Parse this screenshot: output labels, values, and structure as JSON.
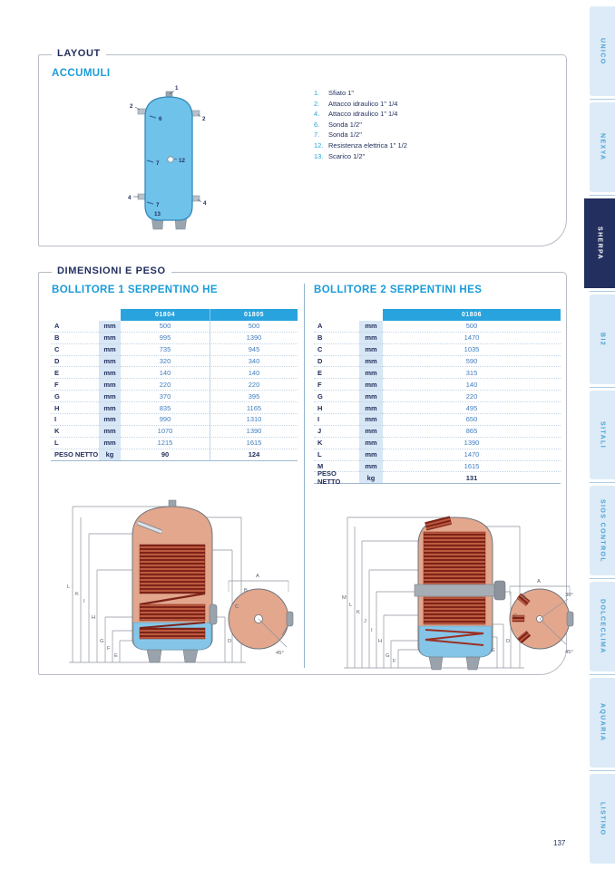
{
  "page": {
    "number": "137"
  },
  "sidebar": {
    "tabs": [
      {
        "label": "UNICO",
        "active": false
      },
      {
        "label": "NEXYA",
        "active": false
      },
      {
        "label": "SHERPA",
        "active": true
      },
      {
        "label": "BI2",
        "active": false
      },
      {
        "label": "SITALI",
        "active": false
      },
      {
        "label": "SIOS CONTROL",
        "active": false
      },
      {
        "label": "DOLCECLIMA",
        "active": false
      },
      {
        "label": "AQUARIA",
        "active": false
      },
      {
        "label": "LISTINO",
        "active": false
      }
    ]
  },
  "layout_section": {
    "title": "LAYOUT",
    "subtitle": "ACCUMULI",
    "legend": [
      {
        "num": "1.",
        "text": "Sfiato 1\""
      },
      {
        "num": "2.",
        "text": "Attacco idraulico 1\" 1/4"
      },
      {
        "num": "4.",
        "text": "Attacco idraulico 1\" 1/4"
      },
      {
        "num": "6.",
        "text": "Sonda 1/2\""
      },
      {
        "num": "7.",
        "text": "Sonda 1/2\""
      },
      {
        "num": "12.",
        "text": "Resistenza elettrica 1\" 1/2"
      },
      {
        "num": "13.",
        "text": "Scarico 1/2\""
      }
    ],
    "diagram_callouts": [
      "1",
      "2",
      "2",
      "6",
      "7",
      "12",
      "4",
      "4",
      "7",
      "13"
    ]
  },
  "dimensions_section": {
    "title": "DIMENSIONI E PESO",
    "tables": [
      {
        "title": "BOLLITORE 1 SERPENTINO HE",
        "models": [
          "01804",
          "01805"
        ],
        "rows": [
          {
            "label": "A",
            "unit": "mm",
            "values": [
              "500",
              "500"
            ]
          },
          {
            "label": "B",
            "unit": "mm",
            "values": [
              "995",
              "1390"
            ]
          },
          {
            "label": "C",
            "unit": "mm",
            "values": [
              "735",
              "945"
            ]
          },
          {
            "label": "D",
            "unit": "mm",
            "values": [
              "320",
              "340"
            ]
          },
          {
            "label": "E",
            "unit": "mm",
            "values": [
              "140",
              "140"
            ]
          },
          {
            "label": "F",
            "unit": "mm",
            "values": [
              "220",
              "220"
            ]
          },
          {
            "label": "G",
            "unit": "mm",
            "values": [
              "370",
              "395"
            ]
          },
          {
            "label": "H",
            "unit": "mm",
            "values": [
              "835",
              "1165"
            ]
          },
          {
            "label": "I",
            "unit": "mm",
            "values": [
              "990",
              "1310"
            ]
          },
          {
            "label": "K",
            "unit": "mm",
            "values": [
              "1070",
              "1390"
            ]
          },
          {
            "label": "L",
            "unit": "mm",
            "values": [
              "1215",
              "1615"
            ]
          }
        ],
        "footer": {
          "label": "PESO NETTO",
          "unit": "kg",
          "values": [
            "90",
            "124"
          ]
        },
        "drawing_labels": [
          "L",
          "K",
          "I",
          "H",
          "G",
          "F",
          "E",
          "B",
          "C",
          "D",
          "A",
          "45°"
        ]
      },
      {
        "title": "BOLLITORE 2 SERPENTINI HES",
        "models": [
          "01806"
        ],
        "rows": [
          {
            "label": "A",
            "unit": "mm",
            "values": [
              "500"
            ]
          },
          {
            "label": "B",
            "unit": "mm",
            "values": [
              "1470"
            ]
          },
          {
            "label": "C",
            "unit": "mm",
            "values": [
              "1035"
            ]
          },
          {
            "label": "D",
            "unit": "mm",
            "values": [
              "590"
            ]
          },
          {
            "label": "E",
            "unit": "mm",
            "values": [
              "315"
            ]
          },
          {
            "label": "F",
            "unit": "mm",
            "values": [
              "140"
            ]
          },
          {
            "label": "G",
            "unit": "mm",
            "values": [
              "220"
            ]
          },
          {
            "label": "H",
            "unit": "mm",
            "values": [
              "495"
            ]
          },
          {
            "label": "I",
            "unit": "mm",
            "values": [
              "650"
            ]
          },
          {
            "label": "J",
            "unit": "mm",
            "values": [
              "865"
            ]
          },
          {
            "label": "K",
            "unit": "mm",
            "values": [
              "1390"
            ]
          },
          {
            "label": "L",
            "unit": "mm",
            "values": [
              "1470"
            ]
          },
          {
            "label": "M",
            "unit": "mm",
            "values": [
              "1615"
            ]
          }
        ],
        "footer": {
          "label": "PESO NETTO",
          "unit": "kg",
          "values": [
            "131"
          ]
        },
        "drawing_labels": [
          "M",
          "L",
          "K",
          "J",
          "I",
          "H",
          "G",
          "F",
          "B",
          "C",
          "D",
          "E",
          "A",
          "30°",
          "45°"
        ]
      }
    ]
  },
  "colors": {
    "accent_cyan": "#29a3dd",
    "navy": "#232f5e",
    "value_blue": "#3f7cc0",
    "sidebar_bg": "#dcebf7",
    "chip_bg": "#d8e7f5",
    "tank_blue": "#6fc2e9",
    "drawing_salmon": "#e3a78d",
    "coil_red": "#7d2318"
  }
}
